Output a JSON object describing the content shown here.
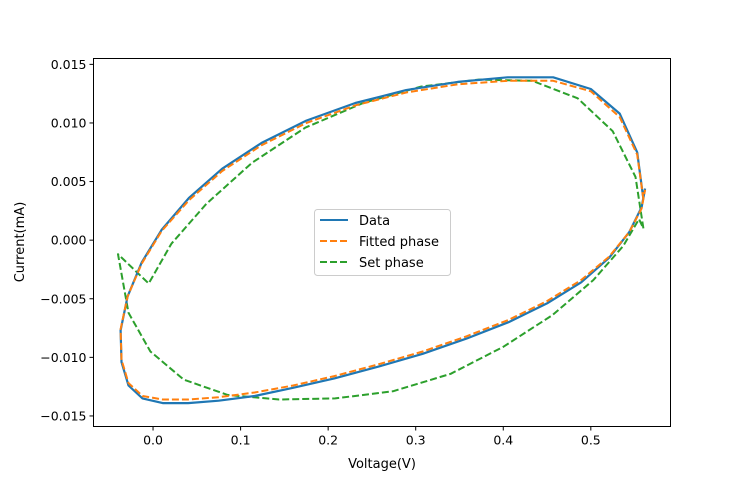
{
  "chart_data": {
    "type": "line",
    "title": "",
    "xlabel": "Voltage(V)",
    "ylabel": "Current(mA)",
    "xlim": [
      -0.068,
      0.591
    ],
    "ylim": [
      -0.0159,
      0.0155
    ],
    "xticks": [
      0.0,
      0.1,
      0.2,
      0.3,
      0.4,
      0.5
    ],
    "xtick_labels": [
      "0.0",
      "0.1",
      "0.2",
      "0.3",
      "0.4",
      "0.5"
    ],
    "yticks": [
      -0.015,
      -0.01,
      -0.005,
      0.0,
      0.005,
      0.01,
      0.015
    ],
    "ytick_labels": [
      "−0.015",
      "−0.010",
      "−0.005",
      "0.000",
      "0.005",
      "0.010",
      "0.015"
    ],
    "grid": false,
    "legend_position": "center",
    "series": [
      {
        "name": "Data",
        "style": "solid",
        "color": "#1f77b4",
        "x": [
          0.56,
          0.553,
          0.533,
          0.5,
          0.457,
          0.405,
          0.348,
          0.289,
          0.231,
          0.175,
          0.124,
          0.079,
          0.041,
          0.01,
          -0.013,
          -0.029,
          -0.037,
          -0.036,
          -0.028,
          -0.012,
          0.011,
          0.04,
          0.075,
          0.116,
          0.16,
          0.207,
          0.257,
          0.308,
          0.358,
          0.406,
          0.45,
          0.489,
          0.521,
          0.544,
          0.558,
          0.562
        ],
        "y": [
          0.0035,
          0.0075,
          0.0108,
          0.0129,
          0.0139,
          0.0139,
          0.0135,
          0.0128,
          0.0117,
          0.0102,
          0.0083,
          0.0061,
          0.0036,
          0.0009,
          -0.0019,
          -0.0048,
          -0.0077,
          -0.0104,
          -0.0124,
          -0.0135,
          -0.0139,
          -0.0139,
          -0.0137,
          -0.0133,
          -0.0126,
          -0.0118,
          -0.0108,
          -0.0097,
          -0.0084,
          -0.007,
          -0.0054,
          -0.0036,
          -0.0015,
          0.0007,
          0.0028,
          0.0044
        ]
      },
      {
        "name": "Fitted phase",
        "style": "dashed",
        "color": "#ff7f0e",
        "x": [
          0.56,
          0.553,
          0.533,
          0.5,
          0.457,
          0.405,
          0.348,
          0.289,
          0.231,
          0.175,
          0.124,
          0.079,
          0.041,
          0.01,
          -0.013,
          -0.029,
          -0.037,
          -0.036,
          -0.028,
          -0.012,
          0.011,
          0.04,
          0.075,
          0.116,
          0.16,
          0.207,
          0.257,
          0.308,
          0.358,
          0.406,
          0.45,
          0.489,
          0.521,
          0.544,
          0.558,
          0.562
        ],
        "y": [
          0.0035,
          0.0073,
          0.0105,
          0.0127,
          0.0136,
          0.0136,
          0.0133,
          0.0126,
          0.0115,
          0.01,
          0.0081,
          0.0059,
          0.0034,
          0.0008,
          -0.002,
          -0.0048,
          -0.0076,
          -0.0102,
          -0.0122,
          -0.0133,
          -0.0136,
          -0.0136,
          -0.0134,
          -0.013,
          -0.0124,
          -0.0116,
          -0.0106,
          -0.0095,
          -0.0082,
          -0.0068,
          -0.0052,
          -0.0034,
          -0.0014,
          0.0007,
          0.0027,
          0.0043
        ]
      },
      {
        "name": "Set phase",
        "style": "dashed",
        "color": "#2ca02c",
        "x": [
          0.56,
          0.551,
          0.525,
          0.485,
          0.433,
          0.372,
          0.306,
          0.24,
          0.174,
          0.113,
          0.061,
          0.021,
          -0.005,
          -0.04,
          -0.028,
          -0.003,
          0.035,
          0.085,
          0.144,
          0.208,
          0.274,
          0.34,
          0.4,
          0.456,
          0.503,
          0.537,
          0.555,
          0.56
        ],
        "y": [
          0.001,
          0.0054,
          0.0093,
          0.0121,
          0.0136,
          0.0137,
          0.0131,
          0.0117,
          0.0096,
          0.0066,
          0.0031,
          -0.0003,
          -0.0037,
          -0.0012,
          -0.0062,
          -0.0095,
          -0.0119,
          -0.0132,
          -0.0136,
          -0.0135,
          -0.0129,
          -0.0114,
          -0.0091,
          -0.0064,
          -0.0034,
          -0.0005,
          0.0018,
          0.001
        ]
      }
    ]
  }
}
